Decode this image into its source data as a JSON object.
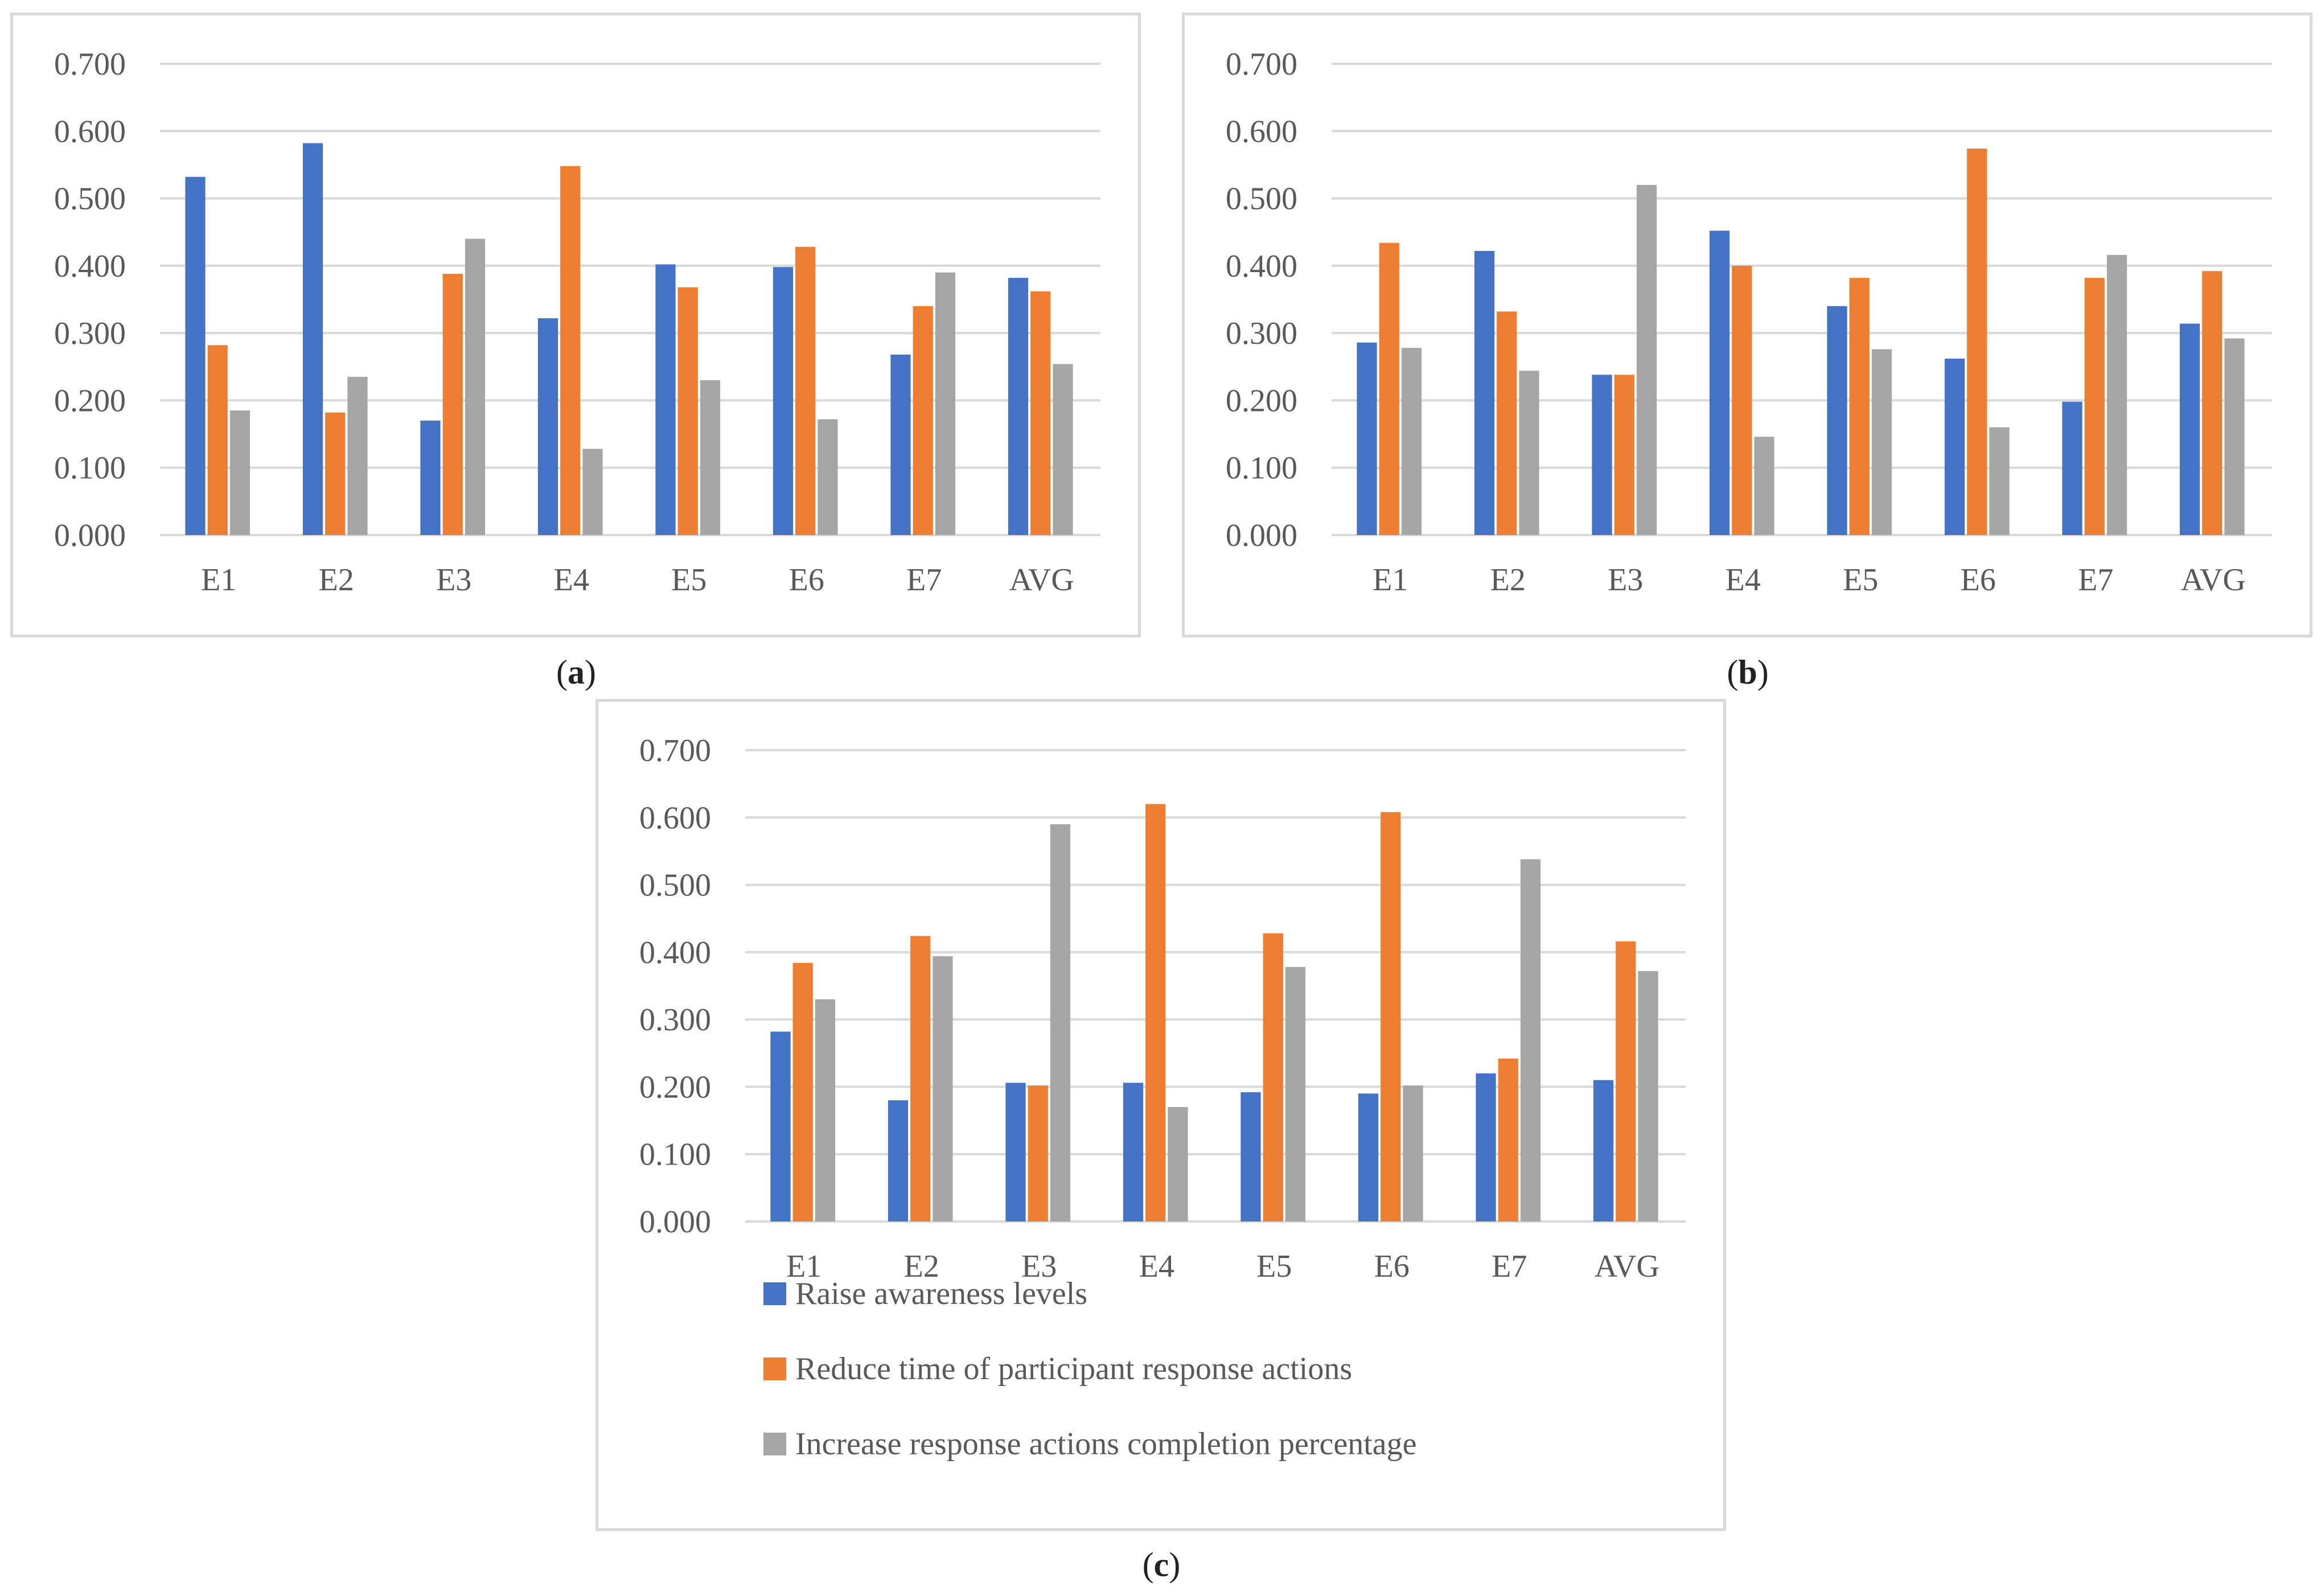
{
  "chart_data": [
    {
      "type": "bar",
      "panel_label": "a",
      "categories": [
        "E1",
        "E2",
        "E3",
        "E4",
        "E5",
        "E6",
        "E7",
        "AVG"
      ],
      "series": [
        {
          "name": "Raise awareness levels",
          "values": [
            0.532,
            0.582,
            0.17,
            0.322,
            0.402,
            0.398,
            0.268,
            0.382
          ]
        },
        {
          "name": "Reduce time of participant response actions",
          "values": [
            0.282,
            0.182,
            0.388,
            0.548,
            0.368,
            0.428,
            0.34,
            0.362
          ]
        },
        {
          "name": "Increase response actions completion percentage",
          "values": [
            0.185,
            0.235,
            0.44,
            0.128,
            0.23,
            0.172,
            0.39,
            0.254
          ]
        }
      ],
      "ylim": [
        0,
        0.7
      ],
      "yticks": [
        "0.000",
        "0.100",
        "0.200",
        "0.300",
        "0.400",
        "0.500",
        "0.600",
        "0.700"
      ],
      "grid": true,
      "legend": false
    },
    {
      "type": "bar",
      "panel_label": "b",
      "categories": [
        "E1",
        "E2",
        "E3",
        "E4",
        "E5",
        "E6",
        "E7",
        "AVG"
      ],
      "series": [
        {
          "name": "Raise awareness levels",
          "values": [
            0.286,
            0.422,
            0.238,
            0.452,
            0.34,
            0.262,
            0.198,
            0.314
          ]
        },
        {
          "name": "Reduce time of participant response actions",
          "values": [
            0.434,
            0.332,
            0.238,
            0.4,
            0.382,
            0.574,
            0.382,
            0.392
          ]
        },
        {
          "name": "Increase response actions completion percentage",
          "values": [
            0.278,
            0.244,
            0.52,
            0.146,
            0.276,
            0.16,
            0.416,
            0.292
          ]
        }
      ],
      "ylim": [
        0,
        0.7
      ],
      "yticks": [
        "0.000",
        "0.100",
        "0.200",
        "0.300",
        "0.400",
        "0.500",
        "0.600",
        "0.700"
      ],
      "grid": true,
      "legend": false
    },
    {
      "type": "bar",
      "panel_label": "c",
      "categories": [
        "E1",
        "E2",
        "E3",
        "E4",
        "E5",
        "E6",
        "E7",
        "AVG"
      ],
      "series": [
        {
          "name": "Raise awareness levels",
          "values": [
            0.282,
            0.18,
            0.206,
            0.206,
            0.192,
            0.19,
            0.22,
            0.21
          ]
        },
        {
          "name": "Reduce time of participant response actions",
          "values": [
            0.384,
            0.424,
            0.202,
            0.62,
            0.428,
            0.608,
            0.242,
            0.416
          ]
        },
        {
          "name": "Increase response actions completion percentage",
          "values": [
            0.33,
            0.394,
            0.59,
            0.17,
            0.378,
            0.202,
            0.538,
            0.372
          ]
        }
      ],
      "ylim": [
        0,
        0.7
      ],
      "yticks": [
        "0.000",
        "0.100",
        "0.200",
        "0.300",
        "0.400",
        "0.500",
        "0.600",
        "0.700"
      ],
      "grid": true,
      "legend": "bottom"
    }
  ],
  "colors": {
    "series": [
      "#4472c4",
      "#ed7d31",
      "#a5a5a5"
    ],
    "grid": "#d9d9d9",
    "text": "#595959",
    "border": "#d9d9d9"
  },
  "legend_items": [
    {
      "label": "Raise awareness levels",
      "color": "#4472c4"
    },
    {
      "label": "Reduce time of participant response actions",
      "color": "#ed7d31"
    },
    {
      "label": "Increase response actions completion percentage",
      "color": "#a5a5a5"
    }
  ],
  "captions": {
    "a": {
      "open": "(",
      "letter": "a",
      "close": ")"
    },
    "b": {
      "open": "(",
      "letter": "b",
      "close": ")"
    },
    "c": {
      "open": "(",
      "letter": "c",
      "close": ")"
    }
  }
}
